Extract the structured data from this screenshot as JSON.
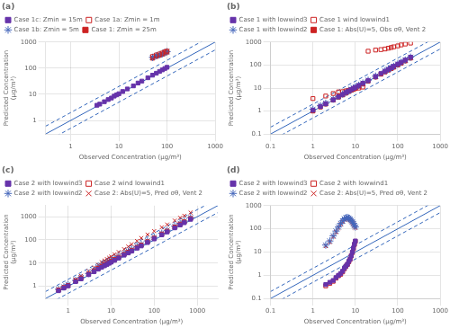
{
  "chart_data": [
    {
      "type": "scatter",
      "title": "(a)",
      "x_label": "Observed Concentration (μg/m³)",
      "y_label": "Predicted Concentration (μg/m³)",
      "log": true,
      "grid": true,
      "legend": "upper left",
      "xlim": [
        0.3,
        1000
      ],
      "ylim": [
        0.3,
        1000
      ],
      "xticks": [
        1,
        10,
        100,
        1000
      ],
      "yticks": [
        1,
        10,
        100,
        1000
      ],
      "reference_lines": [
        {
          "factor": 2,
          "color": "#3366bb",
          "line_style": "dashed"
        },
        {
          "factor": 0.5,
          "color": "#3366bb",
          "line_style": "dashed"
        },
        {
          "factor": 1,
          "color": "#3366bb",
          "line_style": "solid"
        }
      ],
      "series": [
        {
          "name": "Case 1c: Zmin = 15m",
          "color": "#6633aa",
          "marker": "square",
          "x": [
            3.5,
            4.0,
            5.0,
            6.0,
            7.0,
            8.0,
            9.0,
            10.0,
            12.0,
            15.0,
            20.0,
            25.0,
            30.0,
            40.0,
            50.0,
            60.0,
            70.0,
            80.0,
            90.0,
            100.0
          ],
          "values": [
            3.8,
            4.2,
            5.2,
            6.3,
            7.2,
            8.5,
            9.5,
            10.5,
            12.8,
            16.0,
            21.0,
            27.0,
            32.0,
            43.0,
            54.0,
            64.0,
            75.0,
            86.0,
            97.0,
            108.0
          ]
        },
        {
          "name": "Case 1a: Zmin = 1m",
          "color": "#cc2222",
          "marker": "open_square",
          "x": [
            50.0,
            60.0,
            70.0,
            80.0,
            90.0,
            100.0
          ],
          "values": [
            280.0,
            320.0,
            350.0,
            380.0,
            420.0,
            450.0
          ]
        },
        {
          "name": "Case 1b: Zmin = 5m",
          "color": "#4466bb",
          "marker": "star",
          "x": [
            50.0,
            60.0,
            70.0,
            80.0,
            90.0,
            100.0
          ],
          "values": [
            260.0,
            300.0,
            330.0,
            360.0,
            400.0,
            430.0
          ]
        },
        {
          "name": "Case 1: Zmin = 25m",
          "color": "#cc2222",
          "marker": "square",
          "x": [
            50.0,
            60.0,
            70.0,
            80.0,
            90.0,
            100.0
          ],
          "values": [
            240.0,
            280.0,
            310.0,
            340.0,
            380.0,
            410.0
          ]
        }
      ]
    },
    {
      "type": "scatter",
      "title": "(b)",
      "x_label": "Observed Concentration (μg/m³)",
      "y_label": "Predicted Concentration (μg/m³)",
      "log": true,
      "grid": true,
      "legend": "upper left",
      "xlim": [
        0.1,
        1000
      ],
      "ylim": [
        0.1,
        1000
      ],
      "xticks": [
        0.1,
        1,
        10,
        100,
        1000
      ],
      "yticks": [
        0.1,
        1,
        10,
        100,
        1000
      ],
      "reference_lines": [
        {
          "factor": 2,
          "color": "#3366bb",
          "line_style": "dashed"
        },
        {
          "factor": 0.5,
          "color": "#3366bb",
          "line_style": "dashed"
        },
        {
          "factor": 1,
          "color": "#3366bb",
          "line_style": "solid"
        }
      ],
      "series": [
        {
          "name": "Case 1 with lowwind3",
          "color": "#6633aa",
          "marker": "square",
          "x": [
            1.0,
            1.5,
            2.0,
            3.0,
            4.0,
            5.0,
            6.0,
            7.0,
            8.0,
            9.0,
            10.0,
            12.0,
            15.0,
            20.0,
            30.0,
            40.0,
            50.0,
            60.0,
            70.0,
            80.0,
            100.0,
            120.0,
            150.0,
            200.0
          ],
          "values": [
            1.1,
            1.6,
            2.1,
            3.1,
            4.2,
            5.3,
            6.4,
            7.5,
            8.6,
            9.7,
            10.8,
            13.0,
            16.2,
            21.5,
            32.0,
            43.0,
            54.0,
            65.0,
            76.0,
            88.0,
            110.0,
            132.0,
            165.0,
            220.0
          ]
        },
        {
          "name": "Case 1 wind lowwind1",
          "color": "#cc2222",
          "marker": "open_square",
          "x": [
            1.0,
            2.0,
            3.0,
            4.0,
            5.0,
            6.0,
            7.0,
            8.0,
            9.0,
            10.0,
            12.0,
            15.0,
            20.0,
            30.0,
            40.0,
            50.0,
            60.0,
            70.0,
            80.0,
            100.0,
            120.0,
            150.0,
            200.0
          ],
          "values": [
            3.5,
            4.5,
            5.8,
            6.8,
            7.0,
            7.5,
            8.0,
            8.5,
            9.0,
            9.5,
            10.0,
            11.0,
            400.0,
            450.0,
            470.0,
            500.0,
            540.0,
            580.0,
            620.0,
            680.0,
            750.0,
            820.0,
            900.0
          ]
        },
        {
          "name": "Case 1 with lowwind2",
          "color": "#4466bb",
          "marker": "star",
          "x": [
            1.0,
            1.5,
            2.0,
            3.0,
            4.0,
            5.0,
            6.0,
            7.0,
            8.0,
            9.0,
            10.0,
            12.0,
            15.0,
            20.0,
            30.0,
            50.0,
            60.0,
            70.0,
            80.0,
            100.0,
            120.0,
            150.0,
            200.0
          ],
          "values": [
            1.2,
            1.7,
            2.2,
            3.3,
            4.4,
            5.5,
            6.6,
            7.7,
            8.8,
            9.9,
            11.0,
            13.2,
            16.5,
            22.0,
            33.0,
            55.0,
            66.0,
            77.0,
            88.0,
            110.0,
            132.0,
            165.0,
            220.0
          ]
        },
        {
          "name": "Case 1: Abs(U)=5, Obs σθ, Vent 2",
          "color": "#cc2222",
          "marker": "square",
          "x": [
            1.0,
            1.5,
            2.0,
            3.0,
            4.0,
            5.0,
            6.0,
            7.0,
            8.0,
            9.0,
            10.0,
            12.0,
            15.0,
            20.0,
            30.0,
            40.0,
            50.0,
            60.0,
            70.0,
            80.0,
            100.0,
            120.0,
            150.0,
            200.0
          ],
          "values": [
            1.0,
            1.5,
            2.0,
            3.0,
            4.0,
            5.0,
            6.0,
            7.0,
            8.0,
            9.0,
            10.0,
            12.0,
            15.0,
            20.0,
            30.0,
            40.0,
            50.0,
            60.0,
            70.0,
            80.0,
            100.0,
            120.0,
            150.0,
            200.0
          ]
        }
      ]
    },
    {
      "type": "scatter",
      "title": "(c)",
      "x_label": "Observed Concentration (μg/m³)",
      "y_label": "Predicted Concentration (μg/m³)",
      "log": true,
      "grid": true,
      "legend": "upper left",
      "xlim": [
        0.3,
        3000
      ],
      "ylim": [
        0.3,
        3000
      ],
      "xticks": [
        1,
        10,
        100,
        1000
      ],
      "yticks": [
        1,
        10,
        100,
        1000
      ],
      "reference_lines": [
        {
          "factor": 2,
          "color": "#3366bb",
          "line_style": "dashed"
        },
        {
          "factor": 0.5,
          "color": "#3366bb",
          "line_style": "dashed"
        },
        {
          "factor": 1,
          "color": "#3366bb",
          "line_style": "solid"
        }
      ],
      "series": [
        {
          "name": "Case 2 with lowwind3",
          "color": "#6633aa",
          "marker": "square",
          "x": [
            0.6,
            0.8,
            1.0,
            1.5,
            2.0,
            3.0,
            4.0,
            5.0,
            6.0,
            7.0,
            8.0,
            9.0,
            10.0,
            12.0,
            15.0,
            20.0,
            25.0,
            30.0,
            40.0,
            50.0,
            70.0,
            100.0,
            150.0,
            200.0,
            300.0,
            400.0,
            500.0,
            700.0
          ],
          "values": [
            0.65,
            0.85,
            1.05,
            1.6,
            2.1,
            3.2,
            4.3,
            5.5,
            6.6,
            7.7,
            8.8,
            9.9,
            11.0,
            13.2,
            16.5,
            22.0,
            27.5,
            33.0,
            44.0,
            55.0,
            77.0,
            110.0,
            165.0,
            220.0,
            330.0,
            440.0,
            550.0,
            770.0
          ]
        },
        {
          "name": "Case 2 wind lowwind1",
          "color": "#cc2222",
          "marker": "open_square",
          "x": [
            0.6,
            0.8,
            1.0,
            1.5,
            2.0,
            3.0,
            4.0,
            5.0,
            6.0,
            7.0,
            8.0,
            9.0,
            10.0,
            12.0,
            15.0,
            20.0,
            25.0,
            30.0,
            40.0,
            50.0,
            70.0,
            100.0,
            150.0,
            200.0,
            300.0,
            400.0,
            500.0,
            700.0
          ],
          "values": [
            0.7,
            0.9,
            1.1,
            1.7,
            2.3,
            3.4,
            4.5,
            6.0,
            7.2,
            8.4,
            9.6,
            10.8,
            12.0,
            14.4,
            18.0,
            24.0,
            30.0,
            36.0,
            48.0,
            60.0,
            84.0,
            120.0,
            180.0,
            240.0,
            360.0,
            480.0,
            600.0,
            840.0
          ]
        },
        {
          "name": "Case 2 with lowwind2",
          "color": "#4466bb",
          "marker": "star",
          "x": [
            0.6,
            0.8,
            1.0,
            1.5,
            2.0,
            3.0,
            4.0,
            5.0,
            6.0,
            7.0,
            8.0,
            9.0,
            10.0,
            12.0,
            15.0,
            20.0,
            25.0,
            30.0,
            40.0,
            50.0,
            70.0,
            100.0,
            150.0,
            200.0,
            300.0,
            400.0,
            500.0,
            700.0
          ],
          "values": [
            0.75,
            0.95,
            1.2,
            1.8,
            2.4,
            3.6,
            4.8,
            6.5,
            7.8,
            9.1,
            10.4,
            11.7,
            13.0,
            15.6,
            19.5,
            26.0,
            32.5,
            39.0,
            52.0,
            65.0,
            91.0,
            130.0,
            195.0,
            260.0,
            390.0,
            520.0,
            650.0,
            910.0
          ]
        },
        {
          "name": "Case 2: Abs(U)=5, Pred σθ, Vent 2",
          "color": "#cc2222",
          "marker": "x",
          "x": [
            1.5,
            2.0,
            3.0,
            4.0,
            5.0,
            6.0,
            7.0,
            8.0,
            9.0,
            10.0,
            12.0,
            15.0,
            20.0,
            25.0,
            30.0,
            40.0,
            50.0,
            70.0,
            100.0,
            150.0,
            200.0,
            300.0,
            400.0,
            500.0,
            700.0
          ],
          "values": [
            2.0,
            2.8,
            4.5,
            6.5,
            8.5,
            11.0,
            13.0,
            15.0,
            17.0,
            19.0,
            24.0,
            30.0,
            40.0,
            52.0,
            65.0,
            90.0,
            120.0,
            170.0,
            240.0,
            350.0,
            460.0,
            680.0,
            900.0,
            1100.0,
            1500.0
          ]
        }
      ]
    },
    {
      "type": "scatter",
      "title": "(d)",
      "x_label": "Observed Concentration (μg/m³)",
      "y_label": "Predicted Concentration (μg/m³)",
      "log": true,
      "grid": true,
      "legend": "upper left",
      "xlim": [
        0.1,
        1000
      ],
      "ylim": [
        0.1,
        1000
      ],
      "xticks": [
        0.1,
        1,
        10,
        100,
        1000
      ],
      "yticks": [
        0.1,
        1,
        10,
        100,
        1000
      ],
      "reference_lines": [
        {
          "factor": 2,
          "color": "#3366bb",
          "line_style": "dashed"
        },
        {
          "factor": 0.5,
          "color": "#3366bb",
          "line_style": "dashed"
        },
        {
          "factor": 1,
          "color": "#3366bb",
          "line_style": "solid"
        }
      ],
      "series": [
        {
          "name": "Case 2 with lowwind3",
          "color": "#6633aa",
          "marker": "square",
          "x": [
            2.0,
            2.5,
            3.0,
            3.5,
            4.0,
            4.5,
            5.0,
            5.5,
            6.0,
            6.5,
            7.0,
            7.5,
            8.0,
            8.5,
            9.0,
            9.5,
            10.0
          ],
          "values": [
            0.4,
            0.5,
            0.6,
            0.8,
            1.0,
            1.2,
            1.5,
            2.0,
            2.5,
            3.0,
            4.0,
            5.0,
            7.0,
            10.0,
            15.0,
            22.0,
            30.0
          ]
        },
        {
          "name": "Case 2 with lowwind1",
          "color": "#cc2222",
          "marker": "open_square",
          "x": [
            2.0,
            2.5,
            3.0,
            3.5,
            4.0,
            4.5,
            5.0,
            5.5,
            6.0,
            6.5,
            7.0,
            7.5,
            8.0,
            8.5,
            9.0,
            9.5,
            10.0
          ],
          "values": [
            0.35,
            0.45,
            0.55,
            0.75,
            0.95,
            1.1,
            1.4,
            1.9,
            2.4,
            2.9,
            3.8,
            4.8,
            6.8,
            9.5,
            14.0,
            21.0,
            29.0
          ]
        },
        {
          "name": "Case 2 with lowwind2",
          "color": "#4466bb",
          "marker": "star",
          "x": [
            2.0,
            2.5,
            3.0,
            3.5,
            4.0,
            4.5,
            5.0,
            5.5,
            6.0,
            6.5,
            7.0,
            7.5,
            8.0,
            8.5,
            9.0,
            9.5,
            10.0
          ],
          "values": [
            20.0,
            30.0,
            50.0,
            80.0,
            120.0,
            170.0,
            220.0,
            270.0,
            300.0,
            310.0,
            290.0,
            260.0,
            230.0,
            200.0,
            170.0,
            140.0,
            120.0
          ]
        },
        {
          "name": "Case 2: Abs(U)=5, Pred σθ, Vent 2",
          "color": "#cc2222",
          "marker": "x",
          "x": [
            2.0,
            2.5,
            3.0,
            3.5,
            4.0,
            4.5,
            5.0,
            5.5,
            6.0,
            6.5,
            7.0,
            7.5,
            8.0,
            8.5,
            9.0,
            9.5,
            10.0
          ],
          "values": [
            18.0,
            27.0,
            45.0,
            72.0,
            110.0,
            155.0,
            200.0,
            245.0,
            270.0,
            280.0,
            260.0,
            235.0,
            210.0,
            180.0,
            155.0,
            130.0,
            110.0
          ]
        }
      ]
    }
  ]
}
